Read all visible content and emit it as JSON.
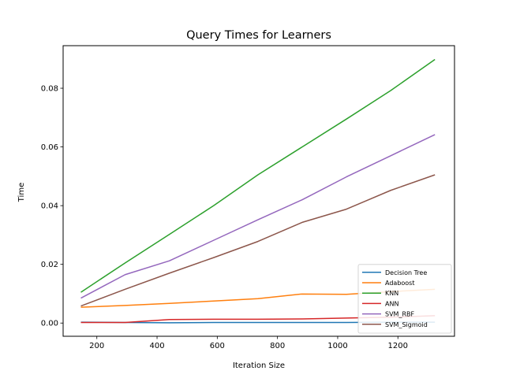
{
  "chart_data": {
    "type": "line",
    "title": "Query Times for Learners",
    "xlabel": "Iteration Size",
    "ylabel": "Time",
    "xlim": [
      88,
      1388
    ],
    "ylim": [
      -0.0045,
      0.0945
    ],
    "xticks": [
      200,
      400,
      600,
      800,
      1000,
      1200
    ],
    "yticks": [
      0.0,
      0.02,
      0.04,
      0.06,
      0.08
    ],
    "ytick_labels": [
      "0.00",
      "0.02",
      "0.04",
      "0.06",
      "0.08"
    ],
    "grid": false,
    "legend_position": "lower right",
    "x": [
      147,
      294,
      441,
      588,
      735,
      882,
      1029,
      1176,
      1323
    ],
    "series": [
      {
        "name": "Decision Tree",
        "color": "#1f77b4",
        "values": [
          0.0003,
          0.0002,
          0.0001,
          0.0002,
          0.0002,
          0.0002,
          0.0002,
          0.0003,
          0.0003
        ]
      },
      {
        "name": "Adaboost",
        "color": "#ff7f0e",
        "values": [
          0.0054,
          0.006,
          0.0067,
          0.0075,
          0.0083,
          0.0099,
          0.0098,
          0.0107,
          0.0115
        ]
      },
      {
        "name": "KNN",
        "color": "#2ca02c",
        "values": [
          0.0105,
          0.0205,
          0.0302,
          0.04,
          0.0505,
          0.06,
          0.0695,
          0.0792,
          0.0898
        ]
      },
      {
        "name": "ANN",
        "color": "#d62728",
        "values": [
          0.0002,
          0.0002,
          0.0012,
          0.0013,
          0.0013,
          0.0014,
          0.0017,
          0.002,
          0.0025
        ]
      },
      {
        "name": "SVM_RBF",
        "color": "#9467bd",
        "values": [
          0.0085,
          0.0165,
          0.0212,
          0.0282,
          0.0352,
          0.042,
          0.0498,
          0.057,
          0.0642
        ]
      },
      {
        "name": "SVM_Sigmoid",
        "color": "#8c564b",
        "values": [
          0.0058,
          0.0115,
          0.017,
          0.0223,
          0.0278,
          0.0343,
          0.0388,
          0.0452,
          0.0505
        ]
      }
    ]
  }
}
